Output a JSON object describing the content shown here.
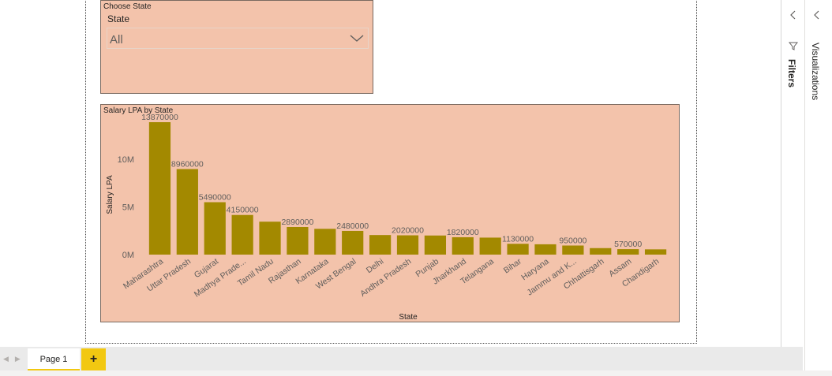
{
  "slicer": {
    "title": "Choose State",
    "header": "State",
    "selected_value": "All"
  },
  "chart_title": "Salary LPA by State",
  "chart_data": {
    "type": "bar",
    "title": "Salary LPA by State",
    "xlabel": "State",
    "ylabel": "Salary LPA",
    "categories": [
      "Maharashtra",
      "Uttar Pradesh",
      "Gujarat",
      "Madhya Prade...",
      "Tamil Nadu",
      "Rajasthan",
      "Karnataka",
      "West Bengal",
      "Delhi",
      "Andhra Pradesh",
      "Punjab",
      "Jharkhand",
      "Telangana",
      "Bihar",
      "Haryana",
      "Jammu and K...",
      "Chhattisgarh",
      "Assam",
      "Chandigarh"
    ],
    "values": [
      13870000,
      8960000,
      5490000,
      4150000,
      3450000,
      2890000,
      2700000,
      2480000,
      2050000,
      2020000,
      2000000,
      1820000,
      1780000,
      1130000,
      1080000,
      950000,
      680000,
      570000,
      550000
    ],
    "data_labels": [
      "13870000",
      "8960000",
      "5490000",
      "4150000",
      "",
      "2890000",
      "",
      "2480000",
      "",
      "2020000",
      "",
      "1820000",
      "",
      "1130000",
      "",
      "950000",
      "",
      "570000",
      ""
    ],
    "y_ticks": [
      "0M",
      "5M",
      "10M"
    ],
    "y_tick_values": [
      0,
      5000000,
      10000000
    ],
    "ylim": [
      0,
      13870000
    ],
    "bar_color": "#a38900",
    "grid": false
  },
  "panes": {
    "filters_label": "Filters",
    "visualizations_label": "Visualizations"
  },
  "tabs": {
    "page1_label": "Page 1",
    "add_label": "+"
  },
  "colors": {
    "visual_background": "#f3c3ab",
    "accent": "#f2c811",
    "bar": "#a38900"
  }
}
